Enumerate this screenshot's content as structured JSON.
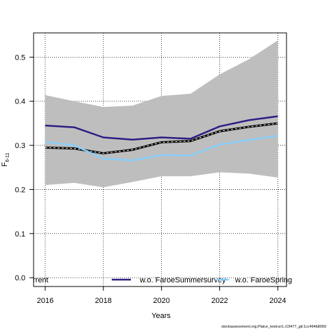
{
  "chart_data": {
    "type": "line",
    "title": "",
    "xlabel": "Years",
    "ylabel_main": "F",
    "ylabel_sub": "6-11",
    "x": [
      2016,
      2017,
      2018,
      2019,
      2020,
      2021,
      2022,
      2023,
      2024
    ],
    "xlim": [
      2015.6,
      2024.3
    ],
    "ylim": [
      -0.02,
      0.555
    ],
    "x_ticks": [
      2016,
      2018,
      2020,
      2022,
      2024
    ],
    "y_ticks": [
      0.0,
      0.1,
      0.2,
      0.3,
      0.4,
      0.5
    ],
    "x_tick_labels": [
      "2016",
      "2018",
      "2020",
      "2022",
      "2024"
    ],
    "y_tick_labels": [
      "0.0",
      "0.1",
      "0.2",
      "0.3",
      "0.4",
      "0.5"
    ],
    "grid": true,
    "confidence_band": {
      "lower": [
        0.21,
        0.215,
        0.205,
        0.217,
        0.23,
        0.23,
        0.239,
        0.236,
        0.227
      ],
      "upper": [
        0.414,
        0.4,
        0.387,
        0.39,
        0.412,
        0.417,
        0.461,
        0.495,
        0.538
      ],
      "color": "#bebebe"
    },
    "series": [
      {
        "values": [
          0.295,
          0.293,
          0.282,
          0.29,
          0.307,
          0.31,
          0.332,
          0.342,
          0.35
        ],
        "color": "#000000",
        "style": "dashed-thick"
      },
      {
        "name": "w.o. FaroeSummersurvey",
        "values": [
          0.345,
          0.341,
          0.318,
          0.313,
          0.318,
          0.315,
          0.343,
          0.357,
          0.366
        ],
        "color": "#2a1e84",
        "style": "solid"
      },
      {
        "name": "w.o. FaroeSpring",
        "values": [
          0.308,
          0.3,
          0.27,
          0.266,
          0.278,
          0.277,
          0.302,
          0.312,
          0.322
        ],
        "color": "#87cefa",
        "style": "solid"
      }
    ],
    "legend": {
      "position": "bottom",
      "items": [
        "rrent",
        "w.o. FaroeSummersurvey",
        "w.o. FaroeSpring"
      ]
    }
  },
  "footnote": "stockassessment.org,Plaice_testrun1,r19477_git:1cc464b8069"
}
